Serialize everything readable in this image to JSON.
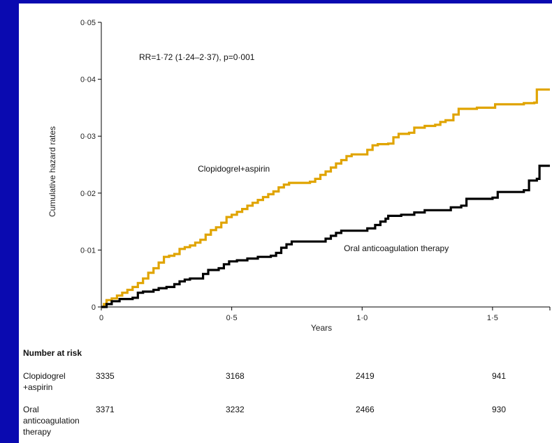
{
  "chart_data": {
    "type": "line",
    "title": "",
    "xlabel": "Years",
    "ylabel": "Cumulative hazard rates",
    "xlim": [
      0,
      1.72
    ],
    "ylim": [
      0,
      0.05
    ],
    "x_ticks": [
      0,
      0.5,
      1.0,
      1.5
    ],
    "x_tick_labels": [
      "0",
      "0·5",
      "1·0",
      "1·5"
    ],
    "y_ticks": [
      0,
      0.01,
      0.02,
      0.03,
      0.04,
      0.05
    ],
    "y_tick_labels": [
      "0",
      "0·01",
      "0·02",
      "0·03",
      "0·04",
      "0·05"
    ],
    "grid": false,
    "annotation": "RR=1·72 (1·24–2·37), p=0·001",
    "colors": {
      "series_0": "#e0a400",
      "series_1": "#000000"
    },
    "series": [
      {
        "name": "Clopidogrel+aspirin",
        "points": [
          [
            0,
            0
          ],
          [
            0.01,
            0.0005
          ],
          [
            0.02,
            0.0012
          ],
          [
            0.04,
            0.0015
          ],
          [
            0.06,
            0.002
          ],
          [
            0.08,
            0.0025
          ],
          [
            0.1,
            0.003
          ],
          [
            0.12,
            0.0035
          ],
          [
            0.14,
            0.0042
          ],
          [
            0.16,
            0.005
          ],
          [
            0.18,
            0.006
          ],
          [
            0.2,
            0.0068
          ],
          [
            0.22,
            0.0078
          ],
          [
            0.24,
            0.0088
          ],
          [
            0.26,
            0.009
          ],
          [
            0.28,
            0.0093
          ],
          [
            0.3,
            0.0102
          ],
          [
            0.32,
            0.0105
          ],
          [
            0.34,
            0.0108
          ],
          [
            0.36,
            0.0113
          ],
          [
            0.38,
            0.0118
          ],
          [
            0.4,
            0.0127
          ],
          [
            0.42,
            0.0135
          ],
          [
            0.44,
            0.014
          ],
          [
            0.46,
            0.0148
          ],
          [
            0.48,
            0.0158
          ],
          [
            0.5,
            0.0162
          ],
          [
            0.52,
            0.0167
          ],
          [
            0.54,
            0.0172
          ],
          [
            0.56,
            0.0178
          ],
          [
            0.58,
            0.0183
          ],
          [
            0.6,
            0.0188
          ],
          [
            0.62,
            0.0193
          ],
          [
            0.64,
            0.0198
          ],
          [
            0.66,
            0.0203
          ],
          [
            0.68,
            0.021
          ],
          [
            0.7,
            0.0215
          ],
          [
            0.72,
            0.0218
          ],
          [
            0.76,
            0.0218
          ],
          [
            0.8,
            0.022
          ],
          [
            0.82,
            0.0225
          ],
          [
            0.84,
            0.0232
          ],
          [
            0.86,
            0.0238
          ],
          [
            0.88,
            0.0245
          ],
          [
            0.9,
            0.0252
          ],
          [
            0.92,
            0.0258
          ],
          [
            0.94,
            0.0265
          ],
          [
            0.96,
            0.0268
          ],
          [
            1.0,
            0.0268
          ],
          [
            1.02,
            0.0276
          ],
          [
            1.04,
            0.0284
          ],
          [
            1.06,
            0.0286
          ],
          [
            1.1,
            0.0287
          ],
          [
            1.12,
            0.0298
          ],
          [
            1.14,
            0.0304
          ],
          [
            1.18,
            0.0306
          ],
          [
            1.2,
            0.0315
          ],
          [
            1.24,
            0.0318
          ],
          [
            1.28,
            0.032
          ],
          [
            1.3,
            0.0325
          ],
          [
            1.32,
            0.0328
          ],
          [
            1.35,
            0.0338
          ],
          [
            1.37,
            0.0348
          ],
          [
            1.44,
            0.035
          ],
          [
            1.5,
            0.035
          ],
          [
            1.51,
            0.0356
          ],
          [
            1.62,
            0.0358
          ],
          [
            1.66,
            0.0359
          ],
          [
            1.67,
            0.0382
          ],
          [
            1.72,
            0.0382
          ]
        ]
      },
      {
        "name": "Oral anticoagulation therapy",
        "points": [
          [
            0,
            0
          ],
          [
            0.02,
            0.0005
          ],
          [
            0.04,
            0.001
          ],
          [
            0.07,
            0.0014
          ],
          [
            0.12,
            0.0016
          ],
          [
            0.14,
            0.0025
          ],
          [
            0.16,
            0.0027
          ],
          [
            0.2,
            0.003
          ],
          [
            0.22,
            0.0033
          ],
          [
            0.25,
            0.0035
          ],
          [
            0.28,
            0.004
          ],
          [
            0.3,
            0.0045
          ],
          [
            0.32,
            0.0048
          ],
          [
            0.34,
            0.005
          ],
          [
            0.38,
            0.005
          ],
          [
            0.39,
            0.0058
          ],
          [
            0.41,
            0.0065
          ],
          [
            0.45,
            0.0068
          ],
          [
            0.47,
            0.0075
          ],
          [
            0.49,
            0.008
          ],
          [
            0.52,
            0.0082
          ],
          [
            0.56,
            0.0085
          ],
          [
            0.6,
            0.0088
          ],
          [
            0.65,
            0.009
          ],
          [
            0.67,
            0.0095
          ],
          [
            0.69,
            0.0104
          ],
          [
            0.71,
            0.011
          ],
          [
            0.73,
            0.0115
          ],
          [
            0.85,
            0.0115
          ],
          [
            0.86,
            0.012
          ],
          [
            0.88,
            0.0125
          ],
          [
            0.9,
            0.013
          ],
          [
            0.92,
            0.0134
          ],
          [
            1.0,
            0.0134
          ],
          [
            1.02,
            0.0138
          ],
          [
            1.05,
            0.0144
          ],
          [
            1.07,
            0.015
          ],
          [
            1.09,
            0.0155
          ],
          [
            1.1,
            0.016
          ],
          [
            1.15,
            0.0162
          ],
          [
            1.2,
            0.0166
          ],
          [
            1.24,
            0.017
          ],
          [
            1.34,
            0.0175
          ],
          [
            1.38,
            0.0178
          ],
          [
            1.4,
            0.019
          ],
          [
            1.5,
            0.0192
          ],
          [
            1.52,
            0.0202
          ],
          [
            1.62,
            0.0205
          ],
          [
            1.64,
            0.0222
          ],
          [
            1.67,
            0.0225
          ],
          [
            1.68,
            0.0248
          ],
          [
            1.72,
            0.0248
          ]
        ]
      }
    ],
    "series_labels": [
      {
        "text": "Clopidogrel+aspirin",
        "x": 0.37,
        "y": 0.0238
      },
      {
        "text": "Oral anticoagulation therapy",
        "x": 0.93,
        "y": 0.0098
      }
    ]
  },
  "risk_table": {
    "title": "Number at risk",
    "rows": [
      {
        "label_lines": [
          "Clopidogrel",
          "+aspirin"
        ],
        "values": [
          "3335",
          "3168",
          "2419",
          "941"
        ]
      },
      {
        "label_lines": [
          "Oral",
          "anticoagulation",
          "therapy"
        ],
        "values": [
          "3371",
          "3232",
          "2466",
          "930"
        ]
      }
    ]
  }
}
